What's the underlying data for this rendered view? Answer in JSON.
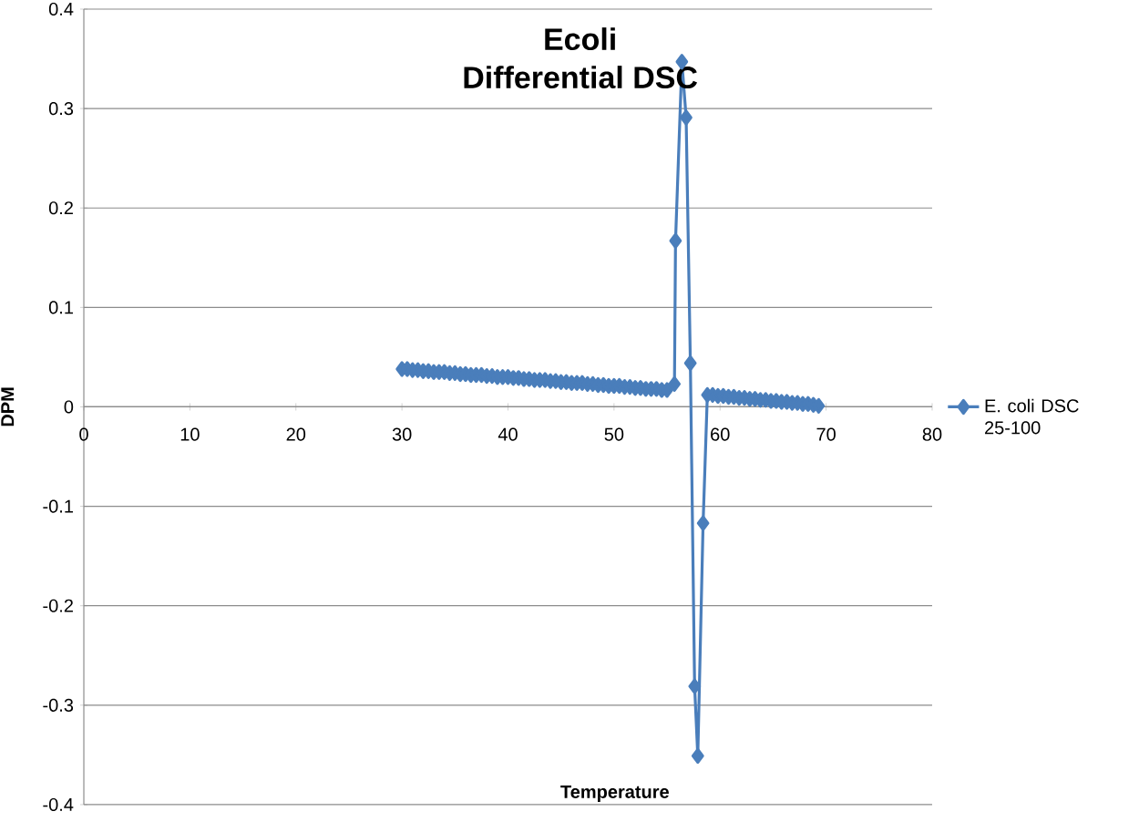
{
  "chart_data": {
    "type": "line",
    "title": "Ecoli",
    "subtitle": "Differential DSC",
    "xlabel": "Temperature",
    "ylabel": "DPM",
    "xlim": [
      0,
      80
    ],
    "xticks": [
      0,
      10,
      20,
      30,
      40,
      50,
      60,
      70,
      80
    ],
    "ylim": [
      -0.4,
      0.4
    ],
    "yticks": [
      -0.4,
      -0.3,
      -0.2,
      -0.1,
      0,
      0.1,
      0.2,
      0.3,
      0.4
    ],
    "grid": "y",
    "legend": "right",
    "marker": "diamond",
    "line_style": "solid",
    "series": [
      {
        "name": "E. coli DSC 25-100",
        "color": "#4a7ebb",
        "x": [
          30,
          30.5,
          31,
          31.5,
          32,
          32.5,
          33,
          33.5,
          34,
          34.5,
          35,
          35.5,
          36,
          36.5,
          37,
          37.5,
          38,
          38.5,
          39,
          39.5,
          40,
          40.5,
          41,
          41.5,
          42,
          42.5,
          43,
          43.5,
          44,
          44.5,
          45,
          45.5,
          46,
          46.5,
          47,
          47.5,
          48,
          48.5,
          49,
          49.5,
          50,
          50.5,
          51,
          51.5,
          52,
          52.5,
          53,
          53.5,
          54,
          54.5,
          55,
          55.7,
          55.8,
          56.4,
          56.8,
          57.2,
          57.6,
          57.9,
          58.4,
          58.8,
          59.3,
          59.8,
          60.3,
          60.8,
          61.3,
          61.8,
          62.3,
          62.8,
          63.3,
          63.8,
          64.3,
          64.8,
          65.3,
          65.8,
          66.3,
          66.8,
          67.3,
          67.8,
          68.3,
          68.8,
          69.3
        ],
        "values": [
          0.038,
          0.038,
          0.037,
          0.037,
          0.036,
          0.036,
          0.035,
          0.035,
          0.035,
          0.034,
          0.034,
          0.033,
          0.033,
          0.032,
          0.032,
          0.032,
          0.031,
          0.031,
          0.03,
          0.03,
          0.03,
          0.029,
          0.029,
          0.028,
          0.028,
          0.027,
          0.027,
          0.027,
          0.026,
          0.026,
          0.025,
          0.025,
          0.024,
          0.024,
          0.024,
          0.023,
          0.023,
          0.022,
          0.022,
          0.021,
          0.021,
          0.021,
          0.02,
          0.02,
          0.019,
          0.019,
          0.018,
          0.018,
          0.018,
          0.017,
          0.017,
          0.023,
          0.167,
          0.347,
          0.291,
          0.044,
          -0.281,
          -0.351,
          -0.117,
          0.012,
          0.012,
          0.011,
          0.011,
          0.01,
          0.01,
          0.009,
          0.009,
          0.008,
          0.008,
          0.007,
          0.007,
          0.006,
          0.006,
          0.005,
          0.005,
          0.004,
          0.004,
          0.003,
          0.003,
          0.002,
          0.001
        ]
      }
    ]
  }
}
